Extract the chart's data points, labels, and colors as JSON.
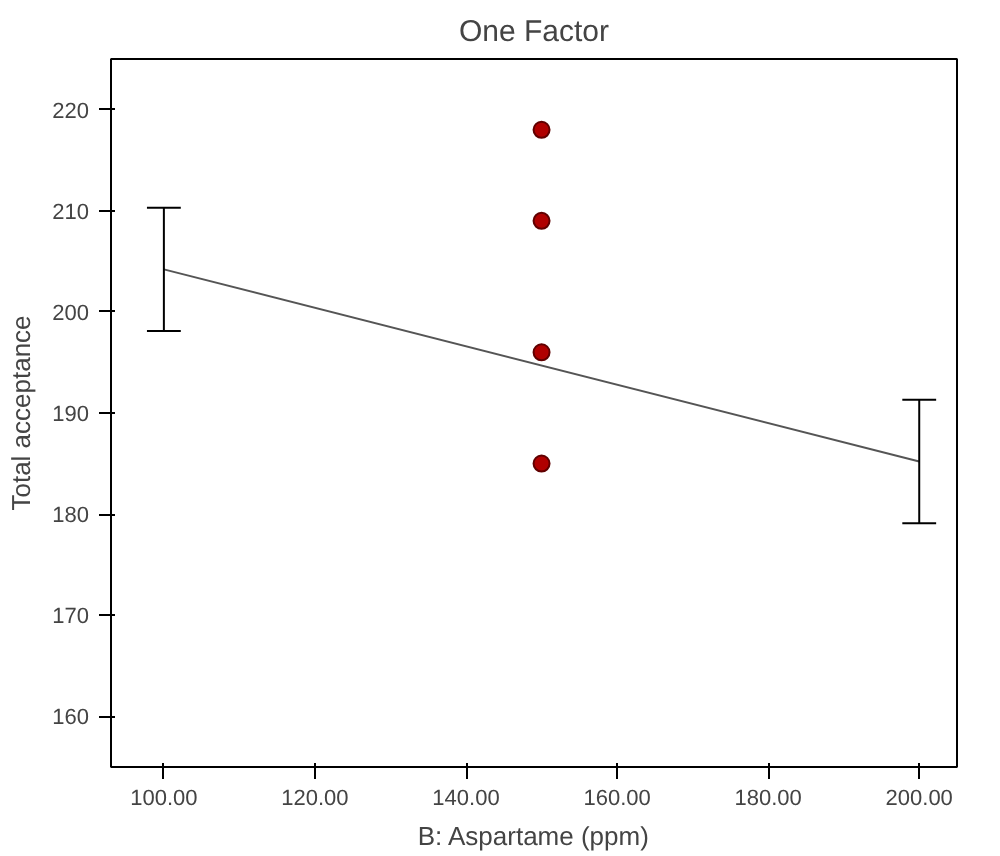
{
  "chart_data": {
    "type": "line",
    "title": "One Factor",
    "xlabel": "B: Aspartame (ppm)",
    "ylabel": "Total acceptance",
    "xlim": [
      93,
      205
    ],
    "ylim": [
      155,
      225
    ],
    "xticks": [
      {
        "value": 100,
        "label": "100.00"
      },
      {
        "value": 120,
        "label": "120.00"
      },
      {
        "value": 140,
        "label": "140.00"
      },
      {
        "value": 160,
        "label": "160.00"
      },
      {
        "value": 180,
        "label": "180.00"
      },
      {
        "value": 200,
        "label": "200.00"
      }
    ],
    "yticks": [
      160,
      170,
      180,
      190,
      200,
      210,
      220
    ],
    "grid": false,
    "series": [
      {
        "color": "#555555",
        "x": [
          100,
          200
        ],
        "values": [
          204.2,
          185.2
        ],
        "errors": [
          [
            198.1,
            210.3
          ],
          [
            179.1,
            191.3
          ]
        ]
      },
      {
        "type": "scatter",
        "color": "#b00000",
        "x": [
          150,
          150,
          150,
          150
        ],
        "values": [
          218,
          209,
          196,
          185
        ],
        "marker": "circle"
      }
    ]
  }
}
